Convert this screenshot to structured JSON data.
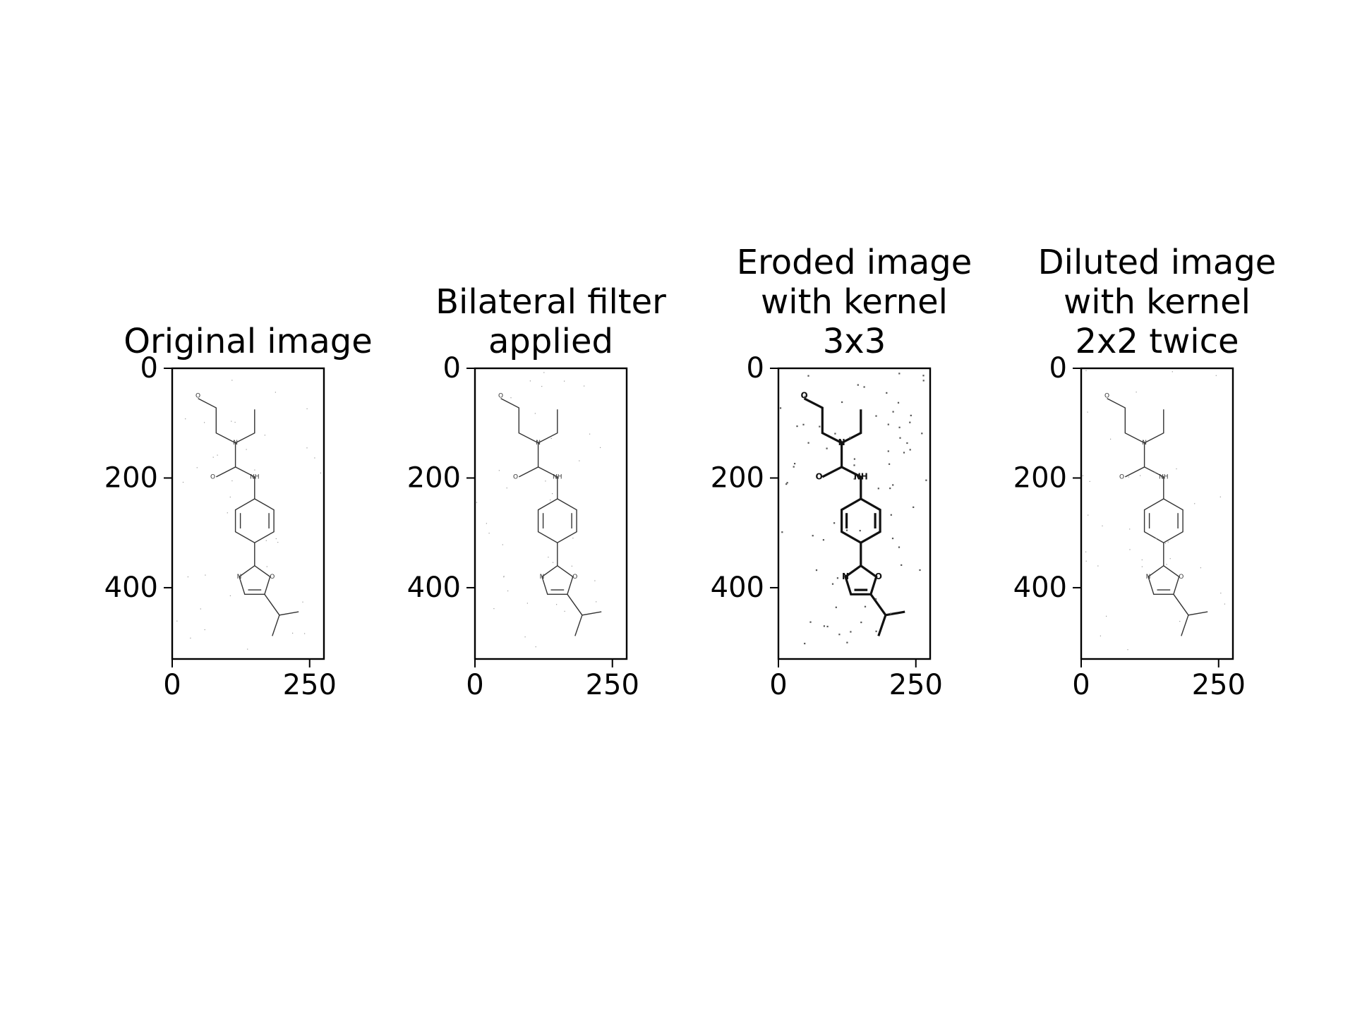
{
  "chart_data": [
    {
      "type": "image",
      "title": [
        "Original image"
      ],
      "xticks": [
        0,
        250
      ],
      "yticks": [
        0,
        200,
        400
      ],
      "xlim": [
        0,
        276
      ],
      "ylim": [
        530,
        0
      ],
      "style": "thin"
    },
    {
      "type": "image",
      "title": [
        "Bilateral filter",
        "applied"
      ],
      "xticks": [
        0,
        250
      ],
      "yticks": [
        0,
        200,
        400
      ],
      "xlim": [
        0,
        276
      ],
      "ylim": [
        530,
        0
      ],
      "style": "thin"
    },
    {
      "type": "image",
      "title": [
        "Eroded image",
        "with kernel",
        "3x3"
      ],
      "xticks": [
        0,
        250
      ],
      "yticks": [
        0,
        200,
        400
      ],
      "xlim": [
        0,
        276
      ],
      "ylim": [
        530,
        0
      ],
      "style": "bold"
    },
    {
      "type": "image",
      "title": [
        "Diluted image",
        "with kernel",
        "2x2 twice"
      ],
      "xticks": [
        0,
        250
      ],
      "yticks": [
        0,
        200,
        400
      ],
      "xlim": [
        0,
        276
      ],
      "ylim": [
        530,
        0
      ],
      "style": "thin"
    }
  ]
}
